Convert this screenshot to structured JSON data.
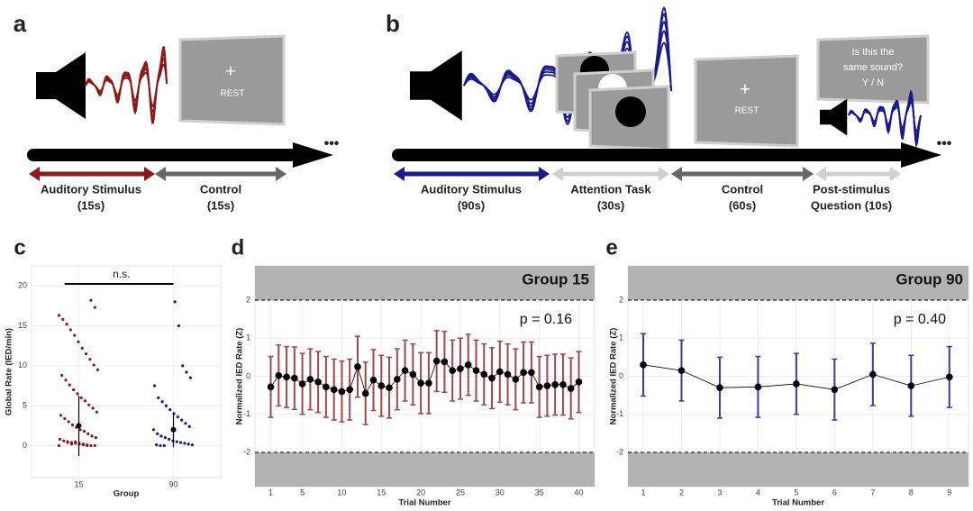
{
  "diagram_a": {
    "panel": "a",
    "screen_symbol": "+",
    "screen_text": "REST",
    "continuation": "•••",
    "segments": [
      {
        "label": "Auditory Stimulus",
        "duration": "(15s)"
      },
      {
        "label": "Control",
        "duration": "(15s)"
      }
    ]
  },
  "diagram_b": {
    "panel": "b",
    "screen_symbol": "+",
    "screen_text": "REST",
    "continuation": "•••",
    "question_lines": [
      "Is this the",
      "same sound?",
      "Y / N"
    ],
    "segments": [
      {
        "label": "Auditory Stimulus",
        "duration": "(90s)"
      },
      {
        "label": "Attention Task",
        "duration": "(30s)"
      },
      {
        "label": "Control",
        "duration": "(60s)"
      },
      {
        "label": "Post-stimulus",
        "duration": "Question (10s)"
      }
    ]
  },
  "chart_data": [
    {
      "type": "strip",
      "panel": "c",
      "y_label": "Global Rate (IED/min)",
      "x_label": "Group",
      "categories": [
        "15",
        "90"
      ],
      "ylim": [
        -4,
        22.5
      ],
      "yticks": [
        0,
        5,
        10,
        15,
        20
      ],
      "grid": true,
      "annotation": "n.s.",
      "groups": [
        {
          "color": "#8b1a1a",
          "mean": 2.5,
          "sd": 3.8,
          "values": [
            0,
            0,
            0,
            0.1,
            0.2,
            0.2,
            0.3,
            0.4,
            0.5,
            0.6,
            0.8,
            1,
            1.2,
            1.5,
            1.8,
            2,
            2.3,
            2.6,
            3,
            3.4,
            3.8,
            4.2,
            4.7,
            5.1,
            5.6,
            6,
            6.5,
            7,
            7.6,
            8.2,
            8.8,
            9.5,
            10.1,
            10.8,
            11.5,
            12.2,
            13,
            13.8,
            14.5,
            15.2,
            15.8,
            16.3,
            17.3,
            18.2,
            0,
            0.1,
            0.3,
            0.5,
            0.2,
            0.4
          ]
        },
        {
          "color": "#1a1a8b",
          "mean": 2.0,
          "sd": 2.2,
          "values": [
            0,
            0,
            0.1,
            0.1,
            0.2,
            0.3,
            0.4,
            0.5,
            0.6,
            0.8,
            1,
            1.2,
            1.5,
            2,
            2.4,
            2.8,
            3.2,
            3.6,
            4,
            4.5,
            5,
            5.5,
            6,
            7.5,
            8.5,
            9.2,
            10,
            15,
            18
          ]
        }
      ]
    },
    {
      "type": "errorbar",
      "panel": "d",
      "title": "Group 15",
      "annotation": "p = 0.16",
      "y_label": "Normalized IED Rate (Z)",
      "x_label": "Trial Number",
      "color": "#a0474b",
      "x": [
        1,
        2,
        3,
        4,
        5,
        6,
        7,
        8,
        9,
        10,
        11,
        12,
        13,
        14,
        15,
        16,
        17,
        18,
        19,
        20,
        21,
        22,
        23,
        24,
        25,
        26,
        27,
        28,
        29,
        30,
        31,
        32,
        33,
        34,
        35,
        36,
        37,
        38,
        39,
        40
      ],
      "values": [
        -0.28,
        0.02,
        -0.02,
        -0.05,
        -0.2,
        -0.08,
        -0.15,
        -0.28,
        -0.35,
        -0.4,
        -0.35,
        0.25,
        -0.45,
        -0.1,
        -0.25,
        -0.3,
        -0.08,
        0.15,
        0.05,
        -0.18,
        -0.18,
        0.4,
        0.38,
        0.15,
        0.2,
        0.3,
        0.15,
        0.05,
        -0.05,
        0.12,
        0.05,
        -0.08,
        0.1,
        0.1,
        -0.28,
        -0.25,
        -0.22,
        -0.22,
        -0.32,
        -0.15
      ],
      "errors": [
        0.8,
        0.8,
        0.8,
        0.82,
        0.8,
        0.8,
        0.8,
        0.8,
        0.8,
        0.8,
        0.8,
        0.8,
        0.82,
        0.8,
        0.8,
        0.8,
        0.8,
        0.8,
        0.8,
        0.8,
        0.8,
        0.8,
        0.8,
        0.8,
        0.8,
        0.8,
        0.8,
        0.8,
        0.8,
        0.8,
        0.8,
        0.8,
        0.8,
        0.8,
        0.8,
        0.8,
        0.8,
        0.8,
        0.8,
        0.8
      ],
      "xlim": [
        -1,
        42
      ],
      "xticks": [
        1,
        5,
        10,
        15,
        20,
        25,
        30,
        35,
        40
      ],
      "ylim": [
        -2.9,
        2.9
      ],
      "yticks": [
        -2,
        -1,
        0,
        1,
        2
      ],
      "thresholds": [
        -2,
        2
      ],
      "grid": true
    },
    {
      "type": "errorbar",
      "panel": "e",
      "title": "Group 90",
      "annotation": "p = 0.40",
      "y_label": "Normalized IED Rate (Z)",
      "x_label": "Trial Number",
      "color": "#3b3b9e",
      "x": [
        1,
        2,
        3,
        4,
        5,
        6,
        7,
        8,
        9
      ],
      "values": [
        0.3,
        0.15,
        -0.3,
        -0.28,
        -0.2,
        -0.35,
        0.05,
        -0.25,
        -0.02
      ],
      "errors": [
        0.82,
        0.8,
        0.8,
        0.8,
        0.8,
        0.8,
        0.82,
        0.8,
        0.8
      ],
      "xlim": [
        0.6,
        9.5
      ],
      "xticks": [
        1,
        2,
        3,
        4,
        5,
        6,
        7,
        8,
        9
      ],
      "ylim": [
        -2.9,
        2.9
      ],
      "yticks": [
        -2,
        -1,
        0,
        1,
        2
      ],
      "thresholds": [
        -2,
        2
      ],
      "grid": true
    }
  ]
}
